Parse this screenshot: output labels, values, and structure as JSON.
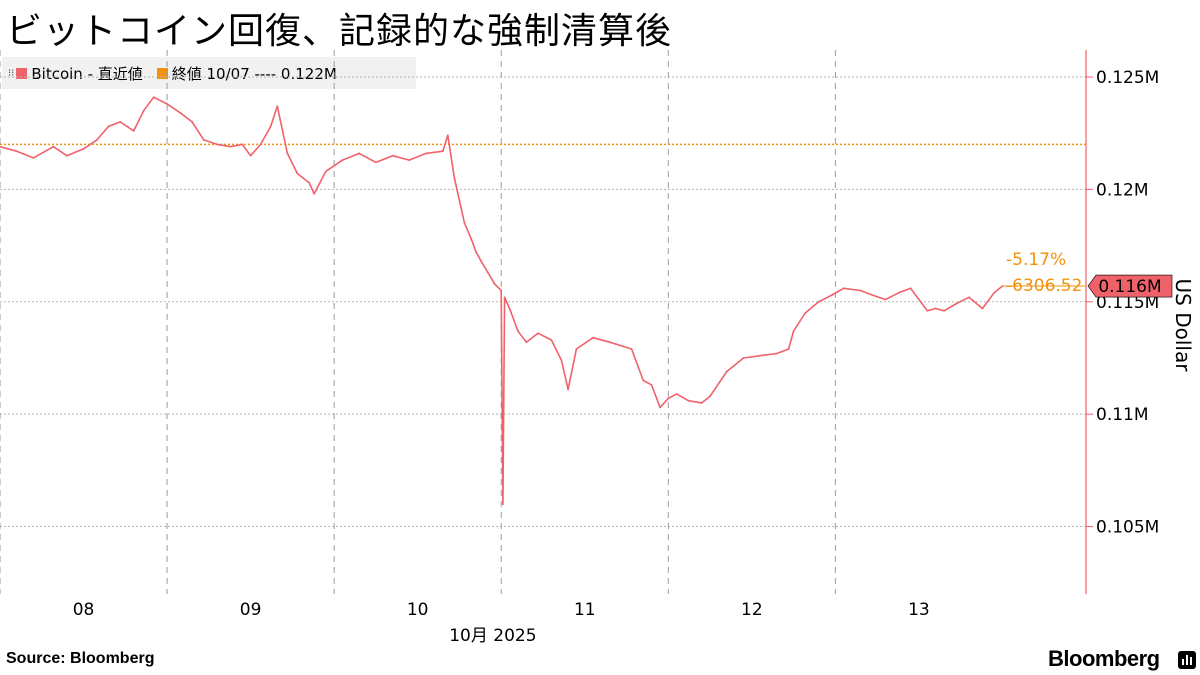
{
  "title": "ビットコイン回復、記録的な強制清算後",
  "legend": {
    "series_label": "Bitcoin - 直近値",
    "close_label": "終値 10/07 ---- 0.122M",
    "series_color": "#f0626a",
    "close_color": "#f2920c"
  },
  "axis": {
    "y_title": "US Dollar",
    "month_label": "10月 2025"
  },
  "annotations": {
    "pct_change": "-5.17%",
    "abs_change": "-6306.52",
    "last_value": "0.116M"
  },
  "source": "Source: Bloomberg",
  "brand": "Bloomberg",
  "chart_data": {
    "type": "line",
    "title": "ビットコイン回復、記録的な強制清算後",
    "ylabel": "US Dollar",
    "xlabel": "10月 2025",
    "x_ticks": [
      "08",
      "09",
      "10",
      "11",
      "12",
      "13"
    ],
    "y_ticks": [
      "0.105M",
      "0.11M",
      "0.115M",
      "0.12M",
      "0.125M"
    ],
    "y_tick_values": [
      105000,
      110000,
      115000,
      120000,
      125000
    ],
    "ylim": [
      102000,
      126200
    ],
    "xlim": [
      7.5,
      14.0
    ],
    "grid": true,
    "legend_position": "top-left",
    "reference_line": {
      "label": "終値 10/07",
      "value": 122000
    },
    "last_value": 115700,
    "series": [
      {
        "name": "Bitcoin",
        "x": [
          7.5,
          7.6,
          7.7,
          7.82,
          7.9,
          8.0,
          8.08,
          8.15,
          8.22,
          8.3,
          8.36,
          8.42,
          8.5,
          8.58,
          8.65,
          8.72,
          8.8,
          8.88,
          8.95,
          9.0,
          9.06,
          9.12,
          9.16,
          9.22,
          9.28,
          9.35,
          9.38,
          9.45,
          9.55,
          9.65,
          9.75,
          9.85,
          9.95,
          10.05,
          10.15,
          10.18,
          10.22,
          10.28,
          10.32,
          10.35,
          10.38,
          10.42,
          10.46,
          10.5,
          10.51,
          10.52,
          10.55,
          10.6,
          10.65,
          10.72,
          10.8,
          10.86,
          10.9,
          10.95,
          11.05,
          11.15,
          11.28,
          11.35,
          11.4,
          11.45,
          11.5,
          11.55,
          11.62,
          11.7,
          11.75,
          11.85,
          11.95,
          12.05,
          12.15,
          12.22,
          12.25,
          12.32,
          12.4,
          12.48,
          12.55,
          12.65,
          12.72,
          12.8,
          12.88,
          12.95,
          13.0,
          13.05,
          13.1,
          13.15,
          13.22,
          13.3,
          13.38,
          13.45,
          13.5
        ],
        "values": [
          121900,
          121700,
          121400,
          121900,
          121500,
          121800,
          122200,
          122800,
          123000,
          122600,
          123500,
          124100,
          123800,
          123400,
          123000,
          122200,
          122000,
          121900,
          122000,
          121500,
          122000,
          122800,
          123700,
          121600,
          120700,
          120300,
          119800,
          120800,
          121300,
          121600,
          121200,
          121500,
          121300,
          121600,
          121700,
          122400,
          120500,
          118500,
          117800,
          117200,
          116800,
          116300,
          115800,
          115500,
          106000,
          115200,
          114700,
          113700,
          113200,
          113600,
          113300,
          112400,
          111100,
          112900,
          113400,
          113200,
          112900,
          111500,
          111300,
          110300,
          110700,
          110900,
          110600,
          110500,
          110800,
          111900,
          112500,
          112600,
          112700,
          112900,
          113700,
          114500,
          115000,
          115300,
          115600,
          115500,
          115300,
          115100,
          115400,
          115600,
          115100,
          114600,
          114700,
          114600,
          114900,
          115200,
          114700,
          115400,
          115700
        ]
      }
    ]
  }
}
